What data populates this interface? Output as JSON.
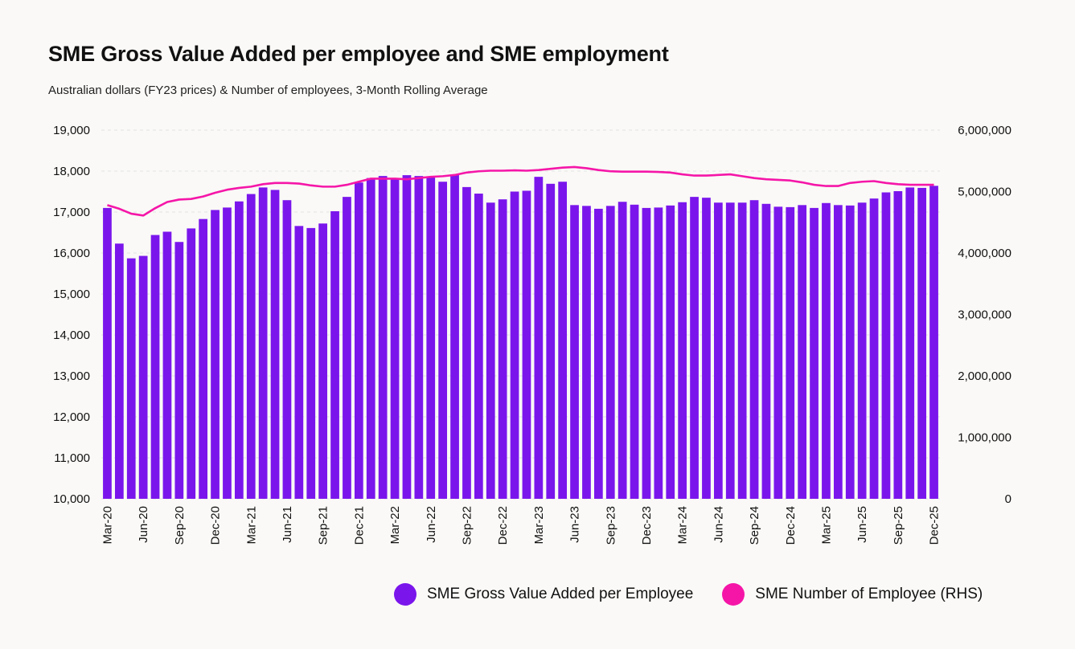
{
  "header": {
    "title": "SME Gross Value Added per employee and SME employment",
    "subtitle": "Australian dollars (FY23 prices) & Number of employees, 3-Month Rolling Average"
  },
  "legend": {
    "gva_label": "SME Gross Value Added per Employee",
    "emp_label": "SME Number of Employee (RHS)"
  },
  "colors": {
    "bars": "#7A16EC",
    "line": "#F516A8",
    "grid": "#E3E3E3"
  },
  "chart_data": {
    "type": "bar",
    "title": "SME Gross Value Added per employee and SME employment",
    "subtitle": "Australian dollars (FY23 prices) & Number of employees, 3-Month Rolling Average",
    "x_tick_labels": [
      "Mar-20",
      "Jun-20",
      "Sep-20",
      "Dec-20",
      "Mar-21",
      "Jun-21",
      "Sep-21",
      "Dec-21",
      "Mar-22",
      "Jun-22",
      "Sep-22",
      "Dec-22",
      "Mar-23",
      "Jun-23",
      "Sep-23",
      "Dec-23",
      "Mar-24",
      "Jun-24",
      "Sep-24",
      "Dec-24",
      "Mar-25",
      "Jun-25",
      "Sep-25",
      "Dec-25"
    ],
    "y_left": {
      "min": 10000,
      "max": 19000,
      "ticks": [
        "19,000",
        "18,000",
        "17,000",
        "16,000",
        "15,000",
        "14,000",
        "13,000",
        "12,000",
        "11,000",
        "10,000"
      ]
    },
    "y_right": {
      "min": 0,
      "max": 6000000,
      "ticks": [
        "6,000,000",
        "5,000,000",
        "4,000,000",
        "3,000,000",
        "2,000,000",
        "1,000,000",
        "0"
      ]
    },
    "grid": true,
    "legend_position": "bottom-right",
    "series": [
      {
        "name": "SME Gross Value Added per Employee",
        "type": "bar",
        "axis": "left",
        "values": [
          17100,
          16230,
          15870,
          15930,
          16440,
          16520,
          16270,
          16600,
          16830,
          17050,
          17110,
          17260,
          17440,
          17600,
          17540,
          17290,
          16660,
          16610,
          16720,
          17020,
          17370,
          17720,
          17830,
          17880,
          17820,
          17900,
          17880,
          17870,
          17740,
          17920,
          17610,
          17450,
          17230,
          17310,
          17500,
          17520,
          17860,
          17690,
          17740,
          17170,
          17150,
          17080,
          17150,
          17250,
          17180,
          17100,
          17110,
          17160,
          17240,
          17370,
          17350,
          17230,
          17230,
          17230,
          17290,
          17200,
          17130,
          17120,
          17170,
          17100,
          17220,
          17170,
          17160,
          17230,
          17330,
          17480,
          17510,
          17600,
          17590,
          17640
        ]
      },
      {
        "name": "SME Number of Employee (RHS)",
        "type": "line",
        "axis": "right",
        "values": [
          4780000,
          4720000,
          4640000,
          4610000,
          4730000,
          4830000,
          4870000,
          4880000,
          4920000,
          4980000,
          5030000,
          5060000,
          5080000,
          5120000,
          5140000,
          5140000,
          5130000,
          5100000,
          5080000,
          5080000,
          5110000,
          5160000,
          5210000,
          5210000,
          5210000,
          5200000,
          5220000,
          5240000,
          5250000,
          5270000,
          5310000,
          5330000,
          5340000,
          5340000,
          5345000,
          5340000,
          5350000,
          5370000,
          5390000,
          5400000,
          5380000,
          5350000,
          5330000,
          5325000,
          5325000,
          5325000,
          5320000,
          5310000,
          5280000,
          5260000,
          5260000,
          5270000,
          5280000,
          5250000,
          5220000,
          5200000,
          5190000,
          5180000,
          5150000,
          5110000,
          5090000,
          5090000,
          5140000,
          5160000,
          5170000,
          5140000,
          5120000,
          5110000,
          5110000,
          5110000
        ]
      }
    ]
  }
}
